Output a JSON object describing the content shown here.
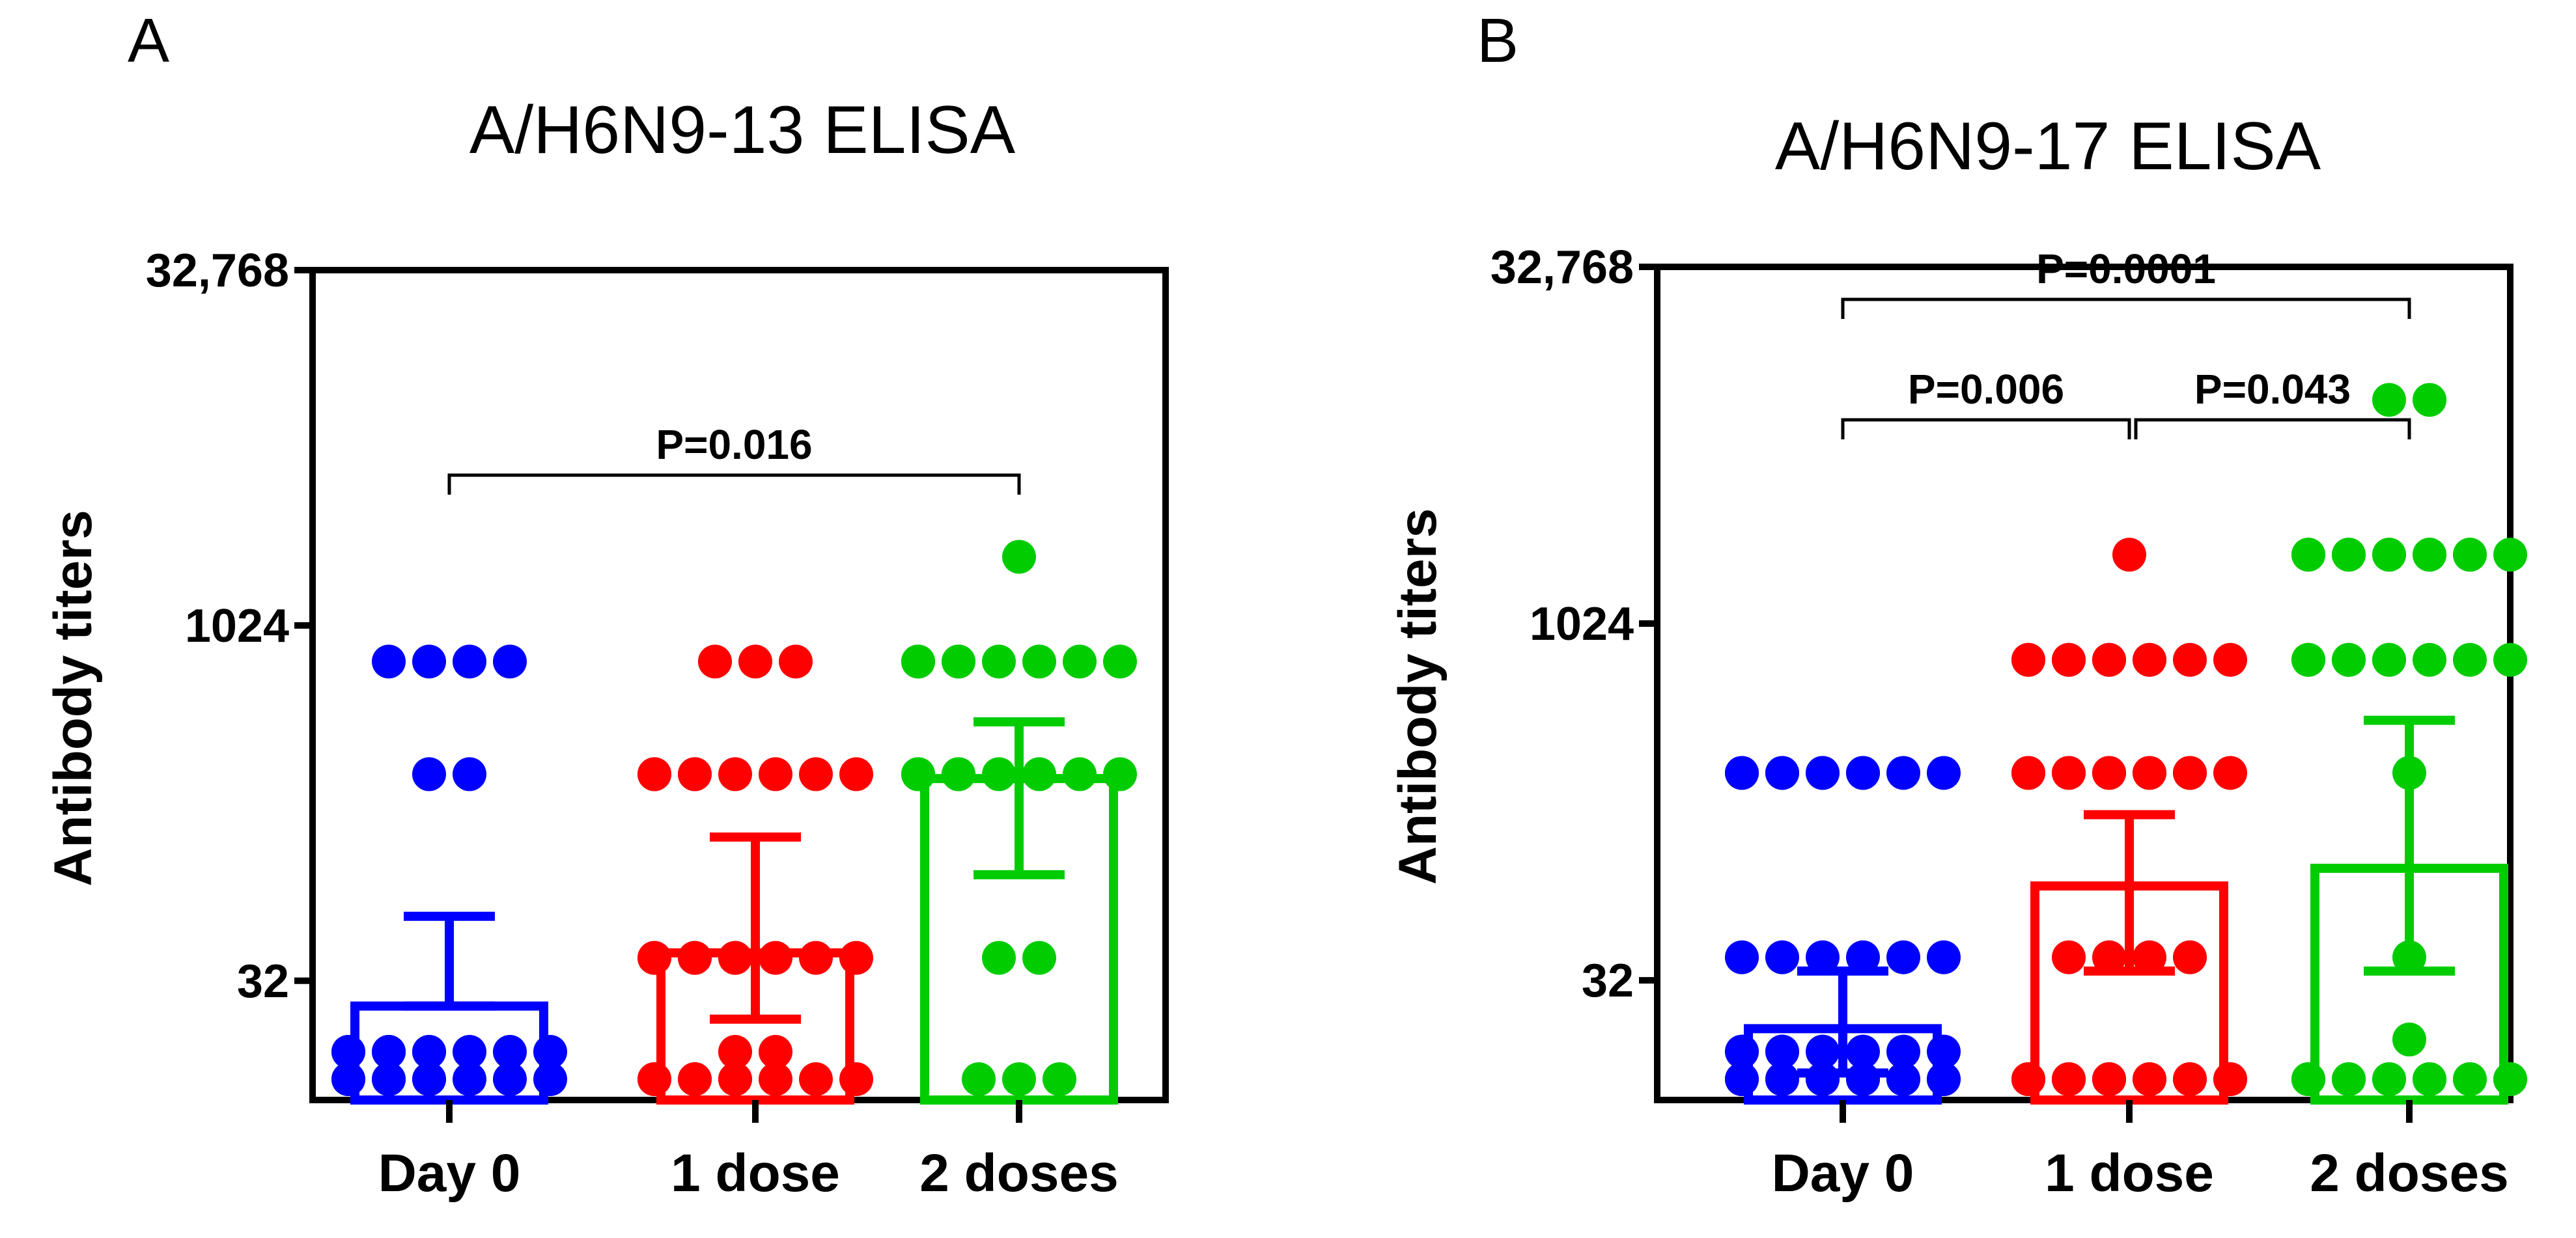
{
  "chart_data": [
    {
      "type": "bar",
      "panel": "A",
      "title": "A/H6N9-13 ELISA",
      "xlabel": "",
      "ylabel": "Antibody titers",
      "yscale": "log2",
      "ylim": [
        10,
        32768
      ],
      "yticks": [
        {
          "value": 32,
          "label": "32"
        },
        {
          "value": 1024,
          "label": "1024"
        },
        {
          "value": 32768,
          "label": "32,768"
        }
      ],
      "categories": [
        "Day 0",
        "1 dose",
        "2 doses"
      ],
      "bars": [
        {
          "mean": 25,
          "error_low": 25,
          "error_high": 60,
          "color": "#0000ff"
        },
        {
          "mean": 42,
          "error_low": 22,
          "error_high": 130,
          "color": "#ff0000"
        },
        {
          "mean": 230,
          "error_low": 90,
          "error_high": 400,
          "color": "#00cc00"
        }
      ],
      "points": [
        [
          10,
          10,
          10,
          10,
          10,
          10,
          10,
          10,
          10,
          16,
          16,
          16,
          16,
          16,
          16,
          16,
          16,
          16,
          240,
          240,
          720,
          720,
          720,
          720
        ],
        [
          10,
          10,
          10,
          10,
          10,
          10,
          10,
          10,
          10,
          16,
          16,
          40,
          40,
          40,
          40,
          40,
          40,
          40,
          40,
          40,
          240,
          240,
          240,
          240,
          240,
          240,
          240,
          240,
          720,
          720,
          720
        ],
        [
          10,
          10,
          10,
          40,
          40,
          240,
          240,
          240,
          240,
          240,
          240,
          240,
          240,
          720,
          720,
          720,
          720,
          720,
          720,
          720,
          720,
          2000
        ]
      ],
      "comparisons": [
        {
          "from": 0,
          "to": 2,
          "label": "P=0.016",
          "level": 1
        }
      ]
    },
    {
      "type": "bar",
      "panel": "B",
      "title": "A/H6N9-17 ELISA",
      "xlabel": "",
      "ylabel": "Antibody titers",
      "yscale": "log2",
      "ylim": [
        10,
        32768
      ],
      "yticks": [
        {
          "value": 32,
          "label": "32"
        },
        {
          "value": 1024,
          "label": "1024"
        },
        {
          "value": 32768,
          "label": "32,768"
        }
      ],
      "categories": [
        "Day 0",
        "1 dose",
        "2 doses"
      ],
      "bars": [
        {
          "mean": 20,
          "error_low": 13,
          "error_high": 35,
          "color": "#0000ff"
        },
        {
          "mean": 80,
          "error_low": 35,
          "error_high": 160,
          "color": "#ff0000"
        },
        {
          "mean": 95,
          "error_low": 35,
          "error_high": 400,
          "color": "#00cc00"
        }
      ],
      "points": [
        [
          10,
          10,
          10,
          10,
          10,
          10,
          10,
          10,
          10,
          10,
          10,
          10,
          16,
          16,
          16,
          16,
          16,
          16,
          16,
          16,
          40,
          40,
          40,
          40,
          40,
          40,
          240,
          240,
          240,
          240,
          240,
          240,
          240,
          240,
          240,
          240
        ],
        [
          10,
          10,
          10,
          10,
          10,
          10,
          10,
          10,
          10,
          10,
          10,
          10,
          10,
          10,
          10,
          40,
          40,
          40,
          40,
          240,
          240,
          240,
          240,
          240,
          240,
          240,
          240,
          240,
          240,
          240,
          720,
          720,
          720,
          720,
          720,
          720,
          720,
          720,
          720,
          720,
          2000
        ],
        [
          10,
          10,
          10,
          10,
          10,
          10,
          10,
          10,
          10,
          10,
          10,
          10,
          10,
          18,
          40,
          240,
          720,
          720,
          720,
          720,
          720,
          720,
          720,
          720,
          720,
          2000,
          2000,
          2000,
          2000,
          2000,
          2000,
          2000,
          2000,
          2000,
          2000,
          2000,
          9000,
          9000
        ]
      ],
      "comparisons": [
        {
          "from": 0,
          "to": 1,
          "label": "P=0.006",
          "level": 1
        },
        {
          "from": 1,
          "to": 2,
          "label": "P=0.043",
          "level": 1
        },
        {
          "from": 0,
          "to": 2,
          "label": "P=0.0001",
          "level": 2
        }
      ]
    }
  ]
}
